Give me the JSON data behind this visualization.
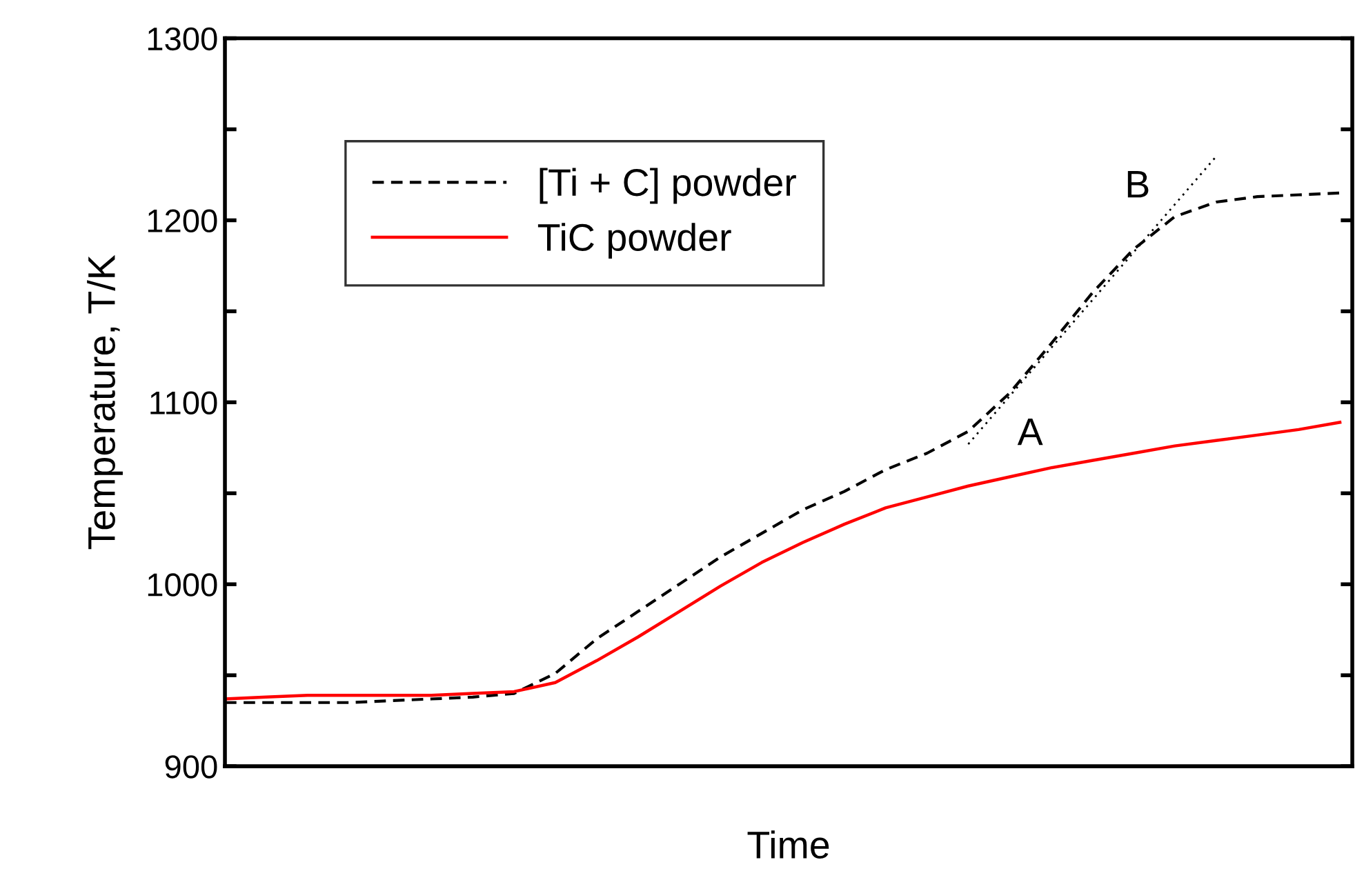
{
  "chart_data": {
    "type": "line",
    "xlabel": "Time",
    "ylabel": "Temperature, T/K",
    "categories": [
      null,
      null,
      null,
      null,
      null,
      null,
      null,
      null,
      null,
      null,
      null,
      null,
      null,
      null,
      null,
      null,
      null,
      null,
      null,
      null,
      null,
      null,
      null,
      null,
      null,
      null,
      null,
      null
    ],
    "series": [
      {
        "name": "[Ti + C] powder",
        "color": "#000000",
        "line_style": "dashed",
        "values": [
          935,
          935,
          935,
          935,
          936,
          937,
          938,
          940,
          951,
          970,
          985,
          1000,
          1015,
          1028,
          1041,
          1051,
          1063,
          1072,
          1084,
          1105,
          1132,
          1160,
          1184,
          1202,
          1210,
          1213,
          1214,
          1215
        ]
      },
      {
        "name": "TiC powder",
        "color": "#ff0000",
        "line_style": "solid",
        "values": [
          937,
          938,
          939,
          939,
          939,
          939,
          940,
          941,
          946,
          958,
          971,
          985,
          999,
          1012,
          1023,
          1033,
          1042,
          1048,
          1054,
          1059,
          1064,
          1068,
          1072,
          1076,
          1079,
          1082,
          1085,
          1089
        ]
      },
      {
        "color": "#000000",
        "line_style": "dotted",
        "values": [
          null,
          null,
          null,
          null,
          null,
          null,
          null,
          null,
          null,
          null,
          null,
          null,
          null,
          null,
          null,
          null,
          null,
          null,
          1077,
          null,
          null,
          null,
          null,
          null,
          1235,
          null,
          null,
          null
        ]
      }
    ],
    "ylim": [
      900,
      1300
    ],
    "yticks": [
      900,
      {
        "value": 950,
        "label": null
      },
      1000,
      {
        "value": 1050,
        "label": null
      },
      1100,
      {
        "value": 1150,
        "label": null
      },
      1200,
      {
        "value": 1250,
        "label": null
      },
      1300
    ],
    "annotations": [
      "A",
      "B"
    ],
    "legend": "top left",
    "grid": false
  }
}
